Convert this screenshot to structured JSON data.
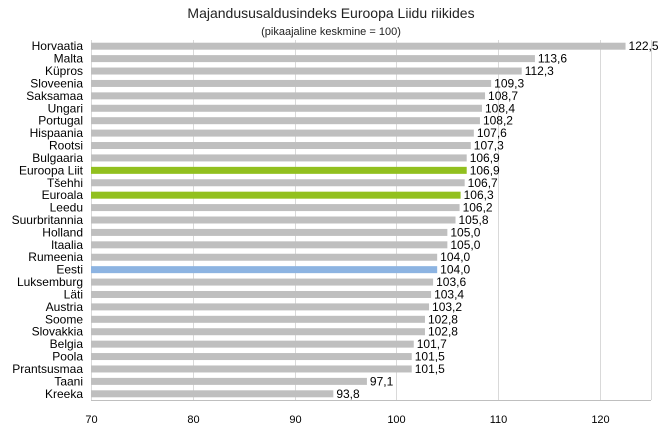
{
  "chart_data": {
    "type": "bar",
    "orientation": "horizontal",
    "title": "Majandususaldusindeks Euroopa Liidu riikides",
    "subtitle": "(pikaajaline keskmine = 100)",
    "xlabel": "",
    "ylabel": "",
    "xlim": [
      70,
      125
    ],
    "x_ticks": [
      "70",
      "80",
      "90",
      "100",
      "110",
      "120"
    ],
    "grid": true,
    "legend": "none",
    "colors": {
      "default": "#bfbfbf",
      "highlight_eu": "#92c01f",
      "highlight_estonia": "#8db4e2"
    },
    "categories": [
      "Horvaatia",
      "Malta",
      "Küpros",
      "Sloveenia",
      "Saksamaa",
      "Ungari",
      "Portugal",
      "Hispaania",
      "Rootsi",
      "Bulgaaria",
      "Euroopa Liit",
      "Tšehhi",
      "Euroala",
      "Leedu",
      "Suurbritannia",
      "Holland",
      "Itaalia",
      "Rumeenia",
      "Eesti",
      "Luksemburg",
      "Läti",
      "Austria",
      "Soome",
      "Slovakkia",
      "Belgia",
      "Poola",
      "Prantsusmaa",
      "Taani",
      "Kreeka"
    ],
    "values": [
      122.5,
      113.6,
      112.3,
      109.3,
      108.7,
      108.4,
      108.2,
      107.6,
      107.3,
      106.9,
      106.9,
      106.7,
      106.3,
      106.2,
      105.8,
      105.0,
      105.0,
      104.0,
      104.0,
      103.6,
      103.4,
      103.2,
      102.8,
      102.8,
      101.7,
      101.5,
      101.5,
      97.1,
      93.8
    ],
    "value_labels": [
      "122,5",
      "113,6",
      "112,3",
      "109,3",
      "108,7",
      "108,4",
      "108,2",
      "107,6",
      "107,3",
      "106,9",
      "106,9",
      "106,7",
      "106,3",
      "106,2",
      "105,8",
      "105,0",
      "105,0",
      "104,0",
      "104,0",
      "103,6",
      "103,4",
      "103,2",
      "102,8",
      "102,8",
      "101,7",
      "101,5",
      "101,5",
      "97,1",
      "93,8"
    ],
    "bar_colors": [
      "default",
      "default",
      "default",
      "default",
      "default",
      "default",
      "default",
      "default",
      "default",
      "default",
      "highlight_eu",
      "default",
      "highlight_eu",
      "default",
      "default",
      "default",
      "default",
      "default",
      "highlight_estonia",
      "default",
      "default",
      "default",
      "default",
      "default",
      "default",
      "default",
      "default",
      "default",
      "default"
    ]
  }
}
